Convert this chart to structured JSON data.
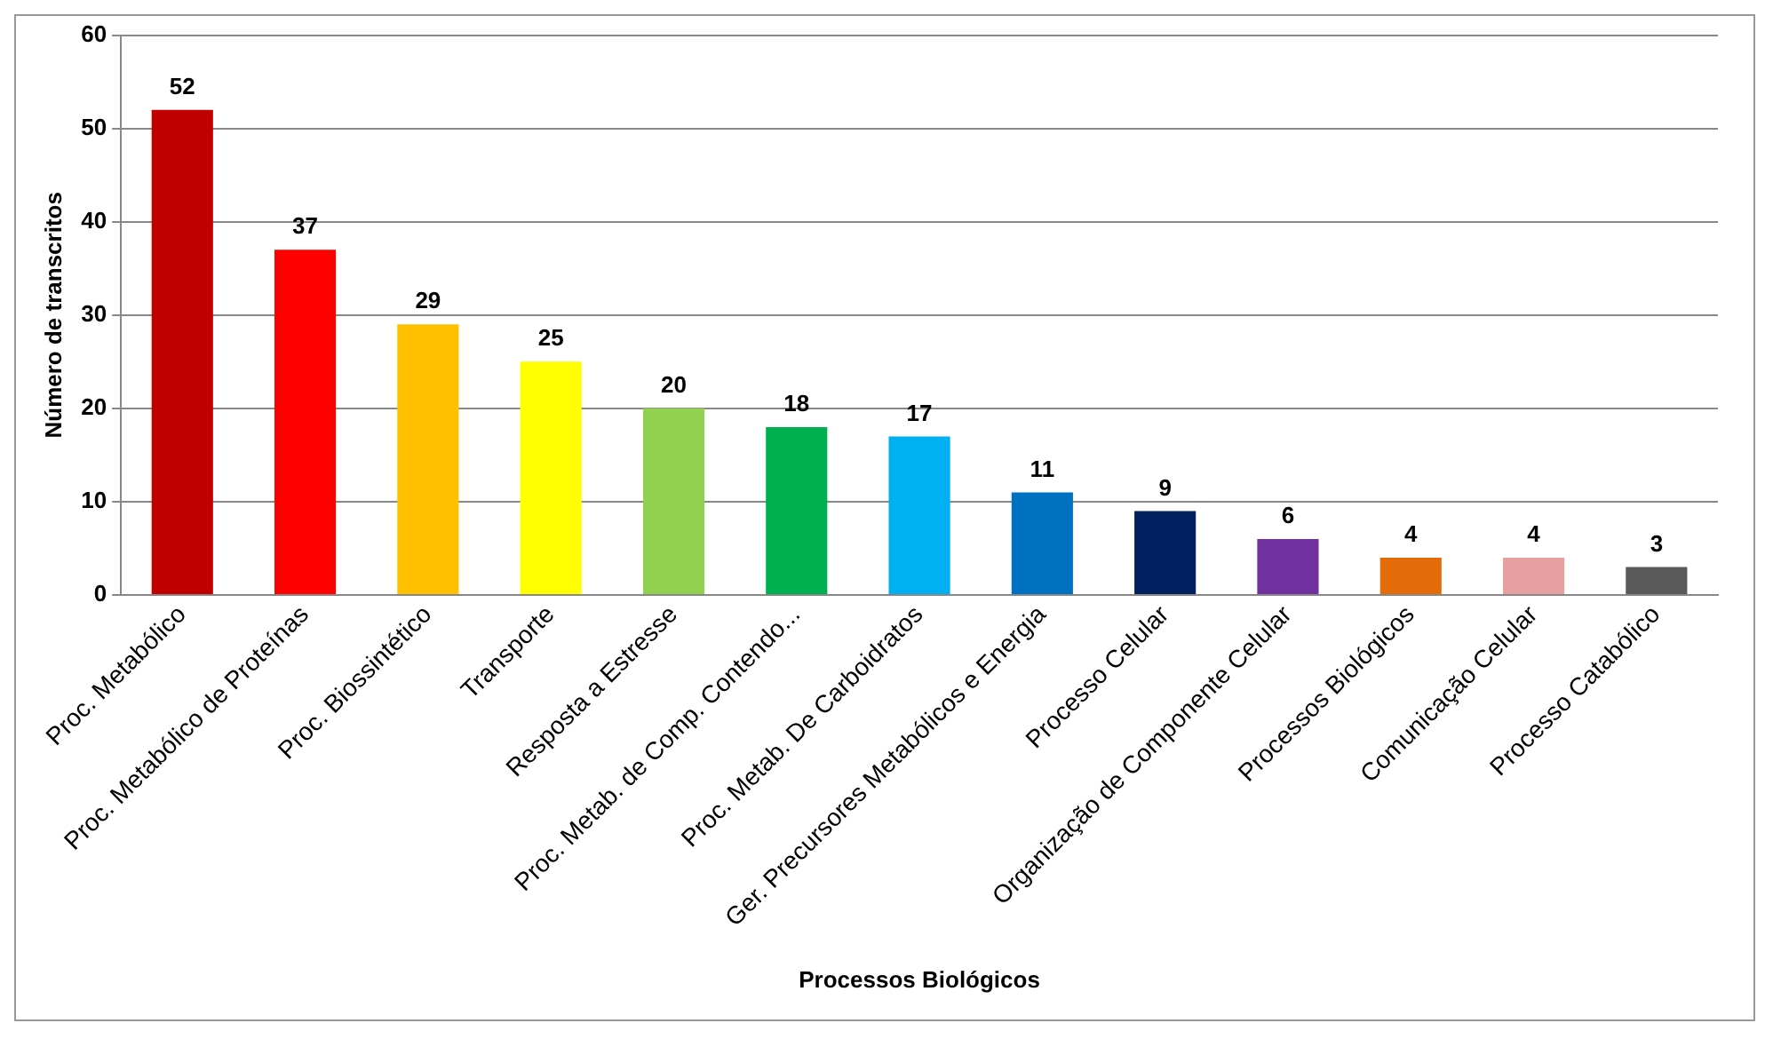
{
  "chart_data": {
    "type": "bar",
    "xlabel": "Processos Biológicos",
    "ylabel": "Número de transcritos",
    "categories": [
      "Proc. Metabólico",
      "Proc. Metabólico de Proteínas",
      "Proc. Biossintético",
      "Transporte",
      "Resposta a Estresse",
      "Proc. Metab. de Comp. Contendo...",
      "Proc. Metab. De Carboidratos",
      "Ger. Precursores Metabólicos e Energia",
      "Processo Celular",
      "Organização de Componente Celular",
      "Processos Biológicos",
      "Comunicação Celular",
      "Processo Catabólico"
    ],
    "values": [
      52,
      37,
      29,
      25,
      20,
      18,
      17,
      11,
      9,
      6,
      4,
      4,
      3
    ],
    "colors": [
      "#c00000",
      "#ff0000",
      "#ffc000",
      "#ffff00",
      "#92d050",
      "#00b050",
      "#00b0f0",
      "#0070c0",
      "#002060",
      "#7030a0",
      "#e36c09",
      "#e6a0a0",
      "#595959"
    ],
    "ylim": [
      0,
      60
    ],
    "yticks": [
      0,
      10,
      20,
      30,
      40,
      50,
      60
    ],
    "grid": "y",
    "legend": false,
    "data_labels": true
  }
}
